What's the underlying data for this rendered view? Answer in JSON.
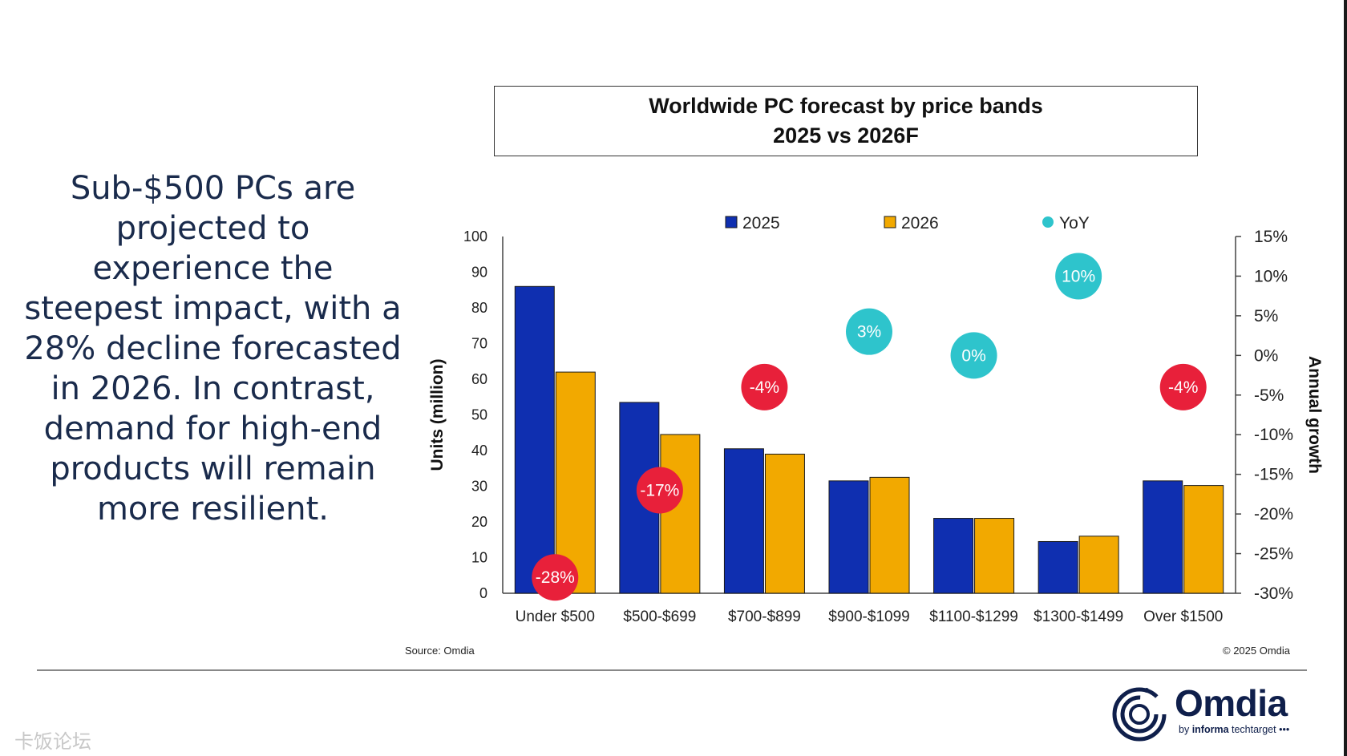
{
  "lead_text": "Sub-$500 PCs are projected to experience the steepest impact, with a 28% decline forecasted in 2026. In contrast, demand for high-end products will remain more resilient.",
  "chart_data": {
    "type": "bar",
    "title": "Worldwide PC forecast by price bands",
    "subtitle": "2025 vs 2026F",
    "categories": [
      "Under $500",
      "$500-$699",
      "$700-$899",
      "$900-$1099",
      "$1100-$1299",
      "$1300-$1499",
      "Over $1500"
    ],
    "series": [
      {
        "name": "2025",
        "values": [
          86,
          53.5,
          40.5,
          31.5,
          21,
          14.5,
          31.5
        ],
        "color": "#0f2fb0"
      },
      {
        "name": "2026",
        "values": [
          62,
          44.5,
          39,
          32.5,
          21,
          16,
          30.2
        ],
        "color": "#f2a900"
      }
    ],
    "yoy": {
      "name": "YoY",
      "values": [
        -28,
        -17,
        -4,
        3,
        0,
        10,
        -4
      ],
      "labels": [
        "-28%",
        "-17%",
        "-4%",
        "3%",
        "0%",
        "10%",
        "-4%"
      ],
      "positive_color": "#2ec4cc",
      "negative_color": "#e8203a"
    },
    "ylabel": "Units (million)",
    "ylim": [
      0,
      100
    ],
    "yticks": [
      "0",
      "10",
      "20",
      "30",
      "40",
      "50",
      "60",
      "70",
      "80",
      "90",
      "100"
    ],
    "y2label": "Annual growth",
    "y2lim": [
      -30,
      15
    ],
    "y2ticks": [
      "-30%",
      "-25%",
      "-20%",
      "-15%",
      "-10%",
      "-5%",
      "0%",
      "5%",
      "10%",
      "15%"
    ],
    "legend_position": "top",
    "grid": false
  },
  "source": "Source: Omdia",
  "copyright": "© 2025 Omdia",
  "logo": {
    "name": "Omdia",
    "tagline_prefix": "by ",
    "tagline_bold": "informa",
    "tagline_suffix": " techtarget"
  },
  "watermark": "卡饭论坛"
}
